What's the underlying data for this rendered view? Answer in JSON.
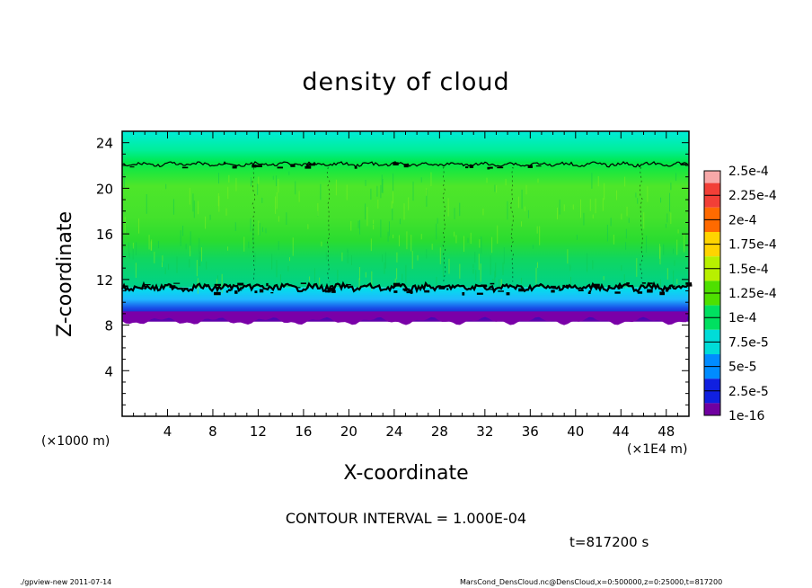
{
  "chart_data": {
    "type": "heatmap",
    "title": "density of cloud",
    "xlabel": "X-coordinate",
    "ylabel": "Z-coordinate",
    "x_unit_left": "(×1000 m)",
    "x_unit_right": "(×1E4 m)",
    "xlim": [
      0,
      50
    ],
    "ylim": [
      0,
      25
    ],
    "x_ticks": [
      "4",
      "8",
      "12",
      "16",
      "20",
      "24",
      "28",
      "32",
      "36",
      "40",
      "44",
      "48"
    ],
    "y_ticks": [
      "4",
      "8",
      "12",
      "16",
      "20",
      "24"
    ],
    "colorbar_labels": [
      "2.5e-4",
      "2.25e-4",
      "2e-4",
      "1.75e-4",
      "1.5e-4",
      "1.25e-4",
      "1e-4",
      "7.5e-5",
      "5e-5",
      "2.5e-5",
      "1e-16"
    ],
    "colorbar_colors": [
      "#f7a8a8",
      "#f23f37",
      "#ff6a00",
      "#ffd400",
      "#b8f000",
      "#4ee000",
      "#00e060",
      "#00dcd8",
      "#008cff",
      "#1020e0",
      "#7000a0"
    ],
    "contour_interval": "CONTOUR INTERVAL = 1.000E-04",
    "time": "t=817200 s",
    "layers": [
      {
        "from": 8,
        "to": 10,
        "description_value": "5e-5 to 0"
      },
      {
        "from": 10,
        "to": 11.3,
        "description_value": "1e-4"
      },
      {
        "from": 11.3,
        "to": 22,
        "description_value": "1.25e-4"
      },
      {
        "from": 22,
        "to": 25,
        "description_value": "7.5e-5"
      }
    ],
    "contour_levels_z": [
      11.3,
      22.1
    ]
  },
  "footer": {
    "left": "./gpview-new  2011-07-14",
    "right": "MarsCond_DensCloud.nc@DensCloud,x=0:500000,z=0:25000,t=817200"
  }
}
